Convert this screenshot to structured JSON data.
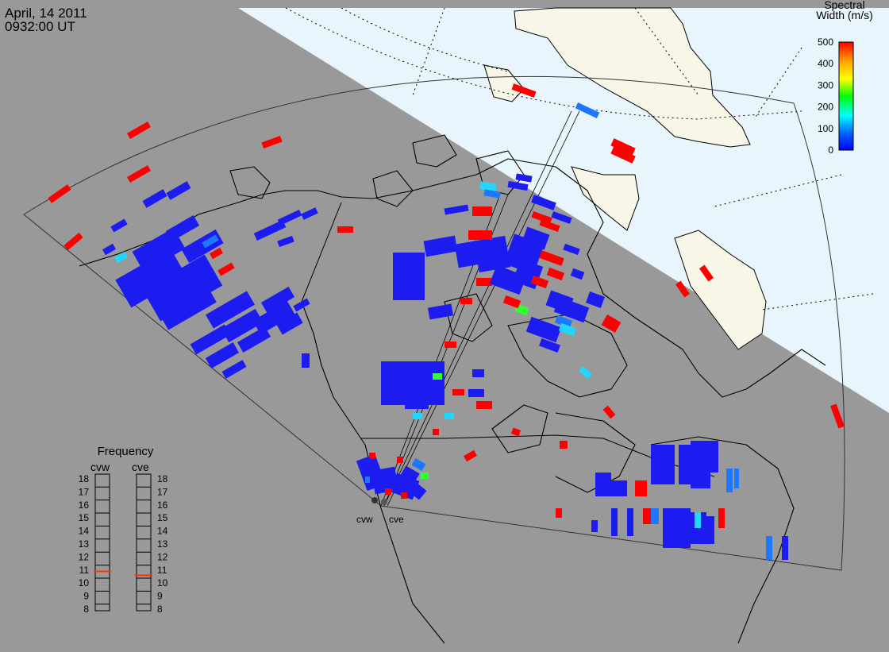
{
  "header": {
    "date": "April, 14 2011",
    "time": "0932:00 UT"
  },
  "colorbar": {
    "title_line1": "Spectral",
    "title_line2": "Width (m/s)",
    "ticks": [
      "500",
      "400",
      "300",
      "200",
      "100",
      "0"
    ],
    "colors": [
      "#ff0000",
      "#ffa500",
      "#ffff00",
      "#00ff00",
      "#00ffff",
      "#0066ff",
      "#0000ff"
    ]
  },
  "radars": {
    "west": "cvw",
    "east": "cve"
  },
  "frequency_panel": {
    "title": "Frequency",
    "col_west": "cvw",
    "col_east": "cve",
    "scale": [
      "18",
      "17",
      "16",
      "15",
      "14",
      "13",
      "12",
      "11",
      "10",
      "9",
      "8"
    ],
    "west_mhz": 10.9,
    "east_mhz": 10.6,
    "marker_color": "#ff3300"
  },
  "map_colors": {
    "night": "#999999",
    "day_sea": "#e8f5fc",
    "day_land": "#f8f6e6",
    "echo_blue": "#1c1cf0",
    "echo_red": "#ff0000"
  }
}
